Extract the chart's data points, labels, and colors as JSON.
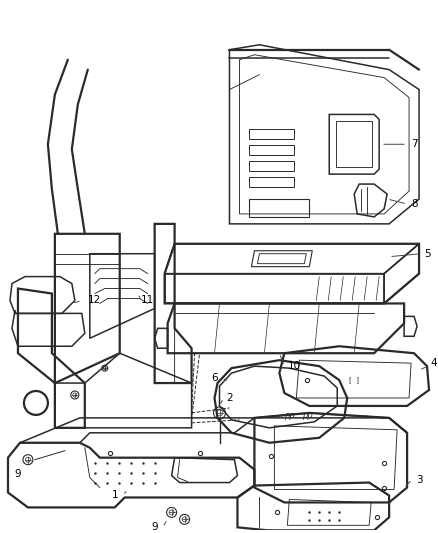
{
  "background_color": "#ffffff",
  "line_color": "#2a2a2a",
  "label_color": "#000000",
  "fig_width": 4.38,
  "fig_height": 5.33,
  "dpi": 100,
  "label_fontsize": 7.5,
  "lw_main": 1.1,
  "lw_thin": 0.65,
  "lw_bold": 1.6
}
